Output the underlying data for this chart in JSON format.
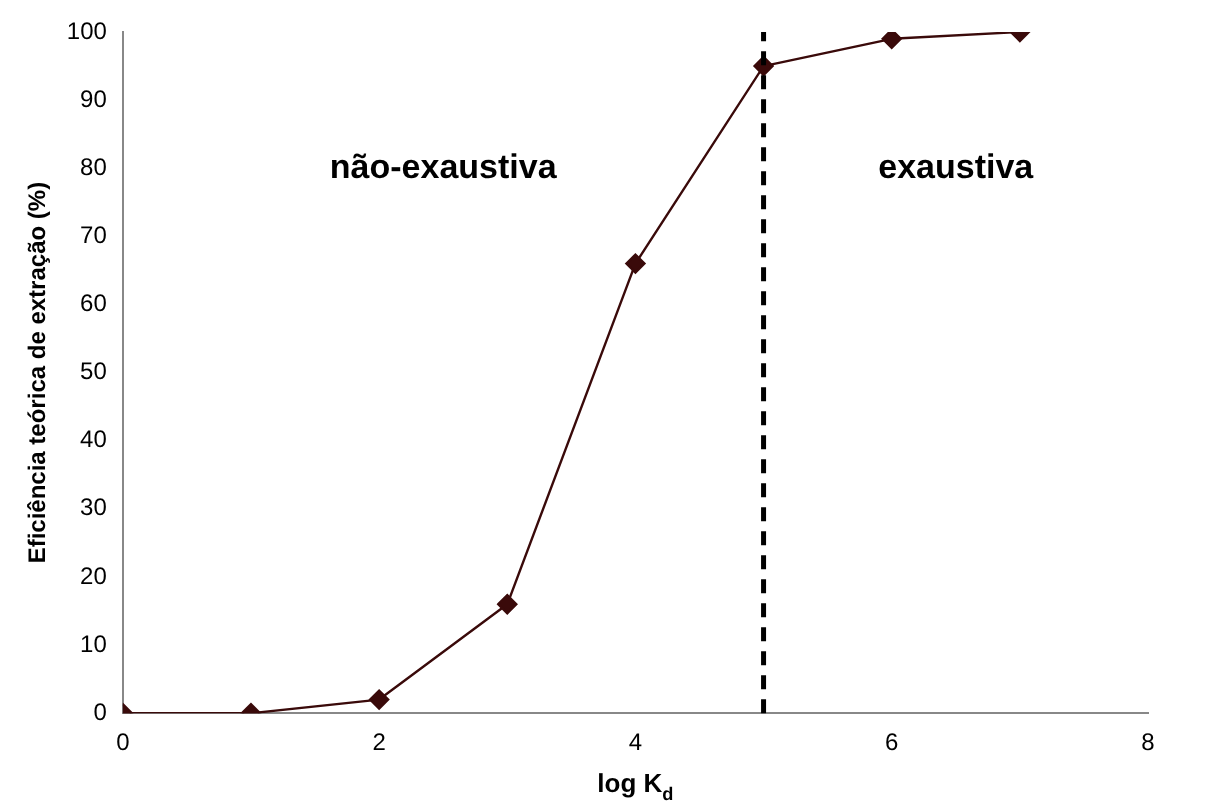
{
  "chart_data": {
    "type": "line",
    "xlabel": "log K$_{d}$",
    "ylabel": "Eficiência teórica de extração (%)",
    "x": [
      0,
      1,
      2,
      3,
      4,
      5,
      6,
      7
    ],
    "series": [
      {
        "color": "#3a0a0a",
        "values": [
          0,
          0,
          2,
          16,
          66,
          95,
          99,
          100
        ]
      }
    ],
    "xlim": [
      0,
      8
    ],
    "xticks": [
      0,
      2,
      4,
      6,
      8
    ],
    "ylim": [
      0,
      100
    ],
    "yticks": [
      0,
      10,
      20,
      30,
      40,
      50,
      60,
      70,
      80,
      90,
      100
    ],
    "grid": false,
    "legend": false,
    "marker": "diamond",
    "line_style": "solid",
    "ref_lines": [
      {
        "axis": "x",
        "value": 5,
        "color": "#000000",
        "line_style": "dashed"
      }
    ],
    "annotations": [
      "não-exaustiva",
      "exaustiva"
    ]
  }
}
